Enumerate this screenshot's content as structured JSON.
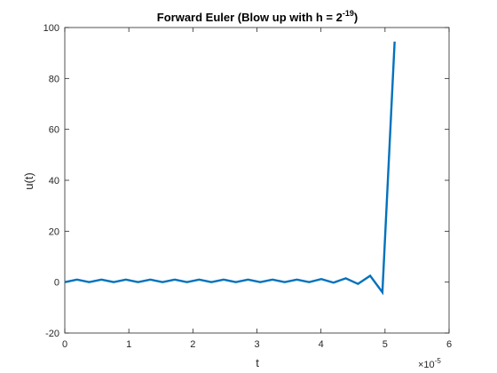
{
  "chart_data": {
    "type": "line",
    "title": {
      "main": "Forward Euler (Blow up with h = 2",
      "superscript": "-19",
      "suffix": ")"
    },
    "xlabel": "t",
    "ylabel": "u(t)",
    "x_exponent": {
      "base": "×10",
      "power": "-5"
    },
    "xlim": [
      0,
      6
    ],
    "ylim": [
      -20,
      100
    ],
    "xticks": [
      0,
      1,
      2,
      3,
      4,
      5,
      6
    ],
    "yticks": [
      -20,
      0,
      20,
      40,
      60,
      80,
      100
    ],
    "xtick_labels": [
      "0",
      "1",
      "2",
      "3",
      "4",
      "5",
      "6"
    ],
    "ytick_labels": [
      "-20",
      "0",
      "20",
      "40",
      "60",
      "80",
      "100"
    ],
    "x_units_multiplier": 1e-05,
    "grid": false,
    "line_color": "#0072BD",
    "axes_color": "#262626",
    "series": [
      {
        "x": [
          0,
          0.191,
          0.381,
          0.572,
          0.763,
          0.954,
          1.144,
          1.335,
          1.526,
          1.717,
          1.907,
          2.098,
          2.289,
          2.48,
          2.67,
          2.861,
          3.052,
          3.243,
          3.433,
          3.624,
          3.815,
          4.005,
          4.196,
          4.387,
          4.578,
          4.768,
          4.959,
          5.15
        ],
        "y": [
          0,
          1,
          0,
          1,
          0,
          1,
          0,
          1,
          0,
          1,
          0,
          1,
          0,
          1,
          0,
          1,
          0,
          1,
          0,
          1,
          0,
          1.2,
          -0.2,
          1.5,
          -0.7,
          2.5,
          -4,
          94.5
        ]
      }
    ]
  }
}
